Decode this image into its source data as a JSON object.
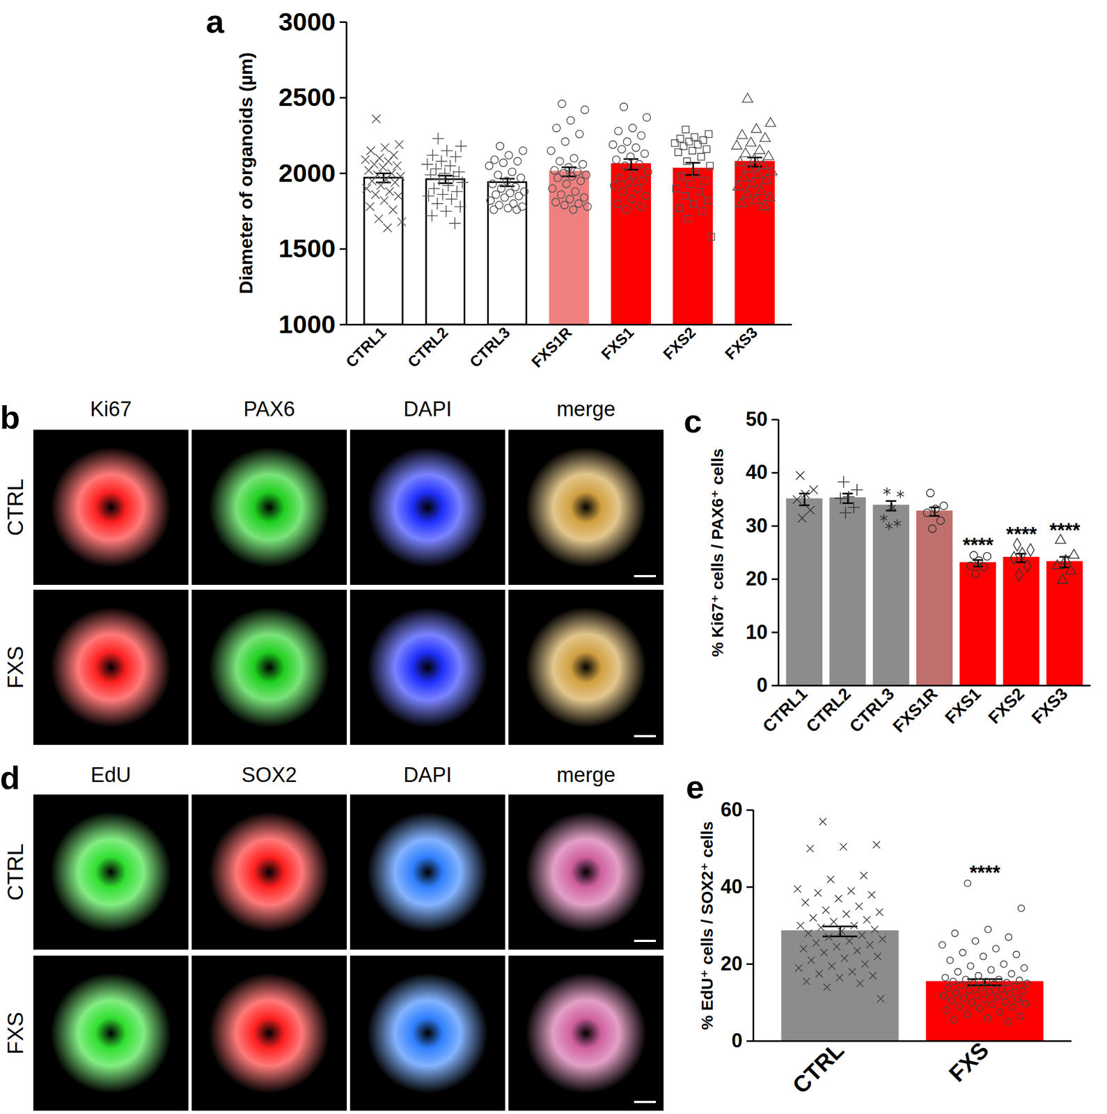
{
  "chart_data": [
    {
      "type": "bar",
      "title": "a",
      "ylabel": "Diameter of organoids (µm)",
      "categories": [
        "CTRL1",
        "CTRL2",
        "CTRL3",
        "FXS1R",
        "FXS1",
        "FXS2",
        "FXS3"
      ],
      "values": [
        1970,
        1960,
        1940,
        2010,
        2060,
        2030,
        2075
      ],
      "errors": [
        30,
        25,
        25,
        30,
        35,
        40,
        30
      ],
      "colors": [
        "#ffffff",
        "#ffffff",
        "#ffffff",
        "#f08080",
        "#ff0000",
        "#ff0000",
        "#ff0000"
      ],
      "points": [
        [
          2360,
          2190,
          2170,
          2150,
          2120,
          2100,
          2090,
          2080,
          2060,
          2050,
          2040,
          2020,
          2000,
          1990,
          1980,
          1960,
          1950,
          1940,
          1920,
          1900,
          1880,
          1860,
          1850,
          1820,
          1780,
          1760,
          1700,
          1680,
          1640
        ],
        [
          2230,
          2180,
          2150,
          2120,
          2110,
          2080,
          2060,
          2050,
          2030,
          2010,
          2000,
          1990,
          1980,
          1960,
          1940,
          1920,
          1900,
          1880,
          1860,
          1850,
          1830,
          1800,
          1780,
          1750,
          1720,
          1670
        ],
        [
          2180,
          2150,
          2120,
          2090,
          2080,
          2070,
          2050,
          2010,
          1990,
          1970,
          1950,
          1930,
          1910,
          1900,
          1880,
          1870,
          1860,
          1850,
          1840,
          1820,
          1800,
          1790,
          1780,
          1770,
          1760,
          1760
        ],
        [
          2460,
          2420,
          2350,
          2300,
          2260,
          2210,
          2150,
          2100,
          2080,
          2060,
          2040,
          2020,
          2010,
          2000,
          1990,
          1980,
          1970,
          1950,
          1930,
          1900,
          1880,
          1860,
          1840,
          1830,
          1810,
          1800,
          1790,
          1780,
          1760
        ],
        [
          2440,
          2370,
          2300,
          2280,
          2250,
          2210,
          2190,
          2170,
          2160,
          2130,
          2110,
          2090,
          2060,
          2050,
          2010,
          1990,
          1970,
          1950,
          1940,
          1920,
          1900,
          1880,
          1850,
          1830,
          1800,
          1780,
          1760
        ],
        [
          2290,
          2260,
          2240,
          2230,
          2220,
          2210,
          2200,
          2190,
          2180,
          2160,
          2150,
          2140,
          2110,
          2080,
          2050,
          2000,
          1980,
          1950,
          1930,
          1900,
          1880,
          1850,
          1820,
          1800,
          1770,
          1750,
          1700,
          1580
        ],
        [
          2490,
          2330,
          2290,
          2250,
          2230,
          2200,
          2180,
          2150,
          2130,
          2110,
          2090,
          2070,
          2050,
          2030,
          2010,
          1990,
          1970,
          1950,
          1930,
          1910,
          1880,
          1860,
          1840,
          1820,
          1800,
          1780
        ]
      ],
      "ylim": [
        1000,
        3000
      ],
      "yticks": [
        1000,
        1500,
        2000,
        2500,
        3000
      ]
    },
    {
      "type": "bar",
      "title": "c",
      "ylabel": "% Ki67⁺ cells / PAX6⁺ cells",
      "categories": [
        "CTRL1",
        "CTRL2",
        "CTRL3",
        "FXS1R",
        "FXS1",
        "FXS2",
        "FXS3"
      ],
      "values": [
        35.0,
        35.2,
        33.8,
        32.7,
        23.0,
        24.0,
        23.2
      ],
      "errors": [
        1.1,
        0.9,
        0.9,
        0.8,
        0.6,
        0.8,
        1.0
      ],
      "colors": [
        "#8c8c8c",
        "#8c8c8c",
        "#8c8c8c",
        "#c0706c",
        "#ff0000",
        "#ff0000",
        "#ff0000"
      ],
      "points": [
        [
          39.5,
          36.8,
          36.0,
          35.0,
          33.0,
          31.5
        ],
        [
          38.3,
          36.8,
          35.5,
          35.2,
          33.5,
          32.5
        ],
        [
          36.5,
          36.0,
          33.5,
          31.5,
          30.5,
          30.0
        ],
        [
          36.2,
          33.8,
          33.2,
          32.5,
          31.0,
          29.5
        ],
        [
          24.5,
          24.3,
          23.5,
          22.5,
          22.3,
          21.0
        ],
        [
          26.5,
          25.5,
          24.8,
          24.0,
          22.5,
          20.8
        ],
        [
          27.3,
          24.5,
          23.5,
          22.5,
          21.5,
          19.8
        ]
      ],
      "annotations": [
        {
          "category": "FXS1",
          "text": "****"
        },
        {
          "category": "FXS2",
          "text": "****"
        },
        {
          "category": "FXS3",
          "text": "****"
        }
      ],
      "ylim": [
        0,
        50
      ],
      "yticks": [
        0,
        10,
        20,
        30,
        40,
        50
      ]
    },
    {
      "type": "bar",
      "title": "e",
      "ylabel": "% EdU⁺ cells / SOX2⁺ cells",
      "categories": [
        "CTRL",
        "FXS"
      ],
      "values": [
        28.5,
        15.3
      ],
      "errors": [
        1.3,
        0.8
      ],
      "colors": [
        "#8c8c8c",
        "#ff0000"
      ],
      "points": [
        [
          57,
          51,
          50.5,
          50,
          43,
          42,
          39.5,
          39,
          38.5,
          38,
          37,
          36,
          35,
          34,
          33.5,
          33,
          32,
          31.5,
          31,
          30,
          30,
          29.5,
          29,
          28.5,
          28,
          27.5,
          27,
          26.5,
          26,
          25.5,
          25,
          24.5,
          24,
          23.5,
          23,
          22,
          21.5,
          21,
          20,
          19.5,
          19,
          18,
          17.5,
          17,
          16.5,
          15.5,
          15,
          14,
          11
        ],
        [
          41,
          34.5,
          29,
          28,
          27,
          26,
          25,
          24,
          23,
          22.5,
          22,
          21,
          20,
          19.5,
          19,
          18.5,
          18,
          17.5,
          17,
          16.5,
          16,
          16,
          15.8,
          15.5,
          15.5,
          15.2,
          15,
          15,
          14.8,
          14.5,
          14.2,
          14,
          13.8,
          13.5,
          13.2,
          13,
          12.8,
          12.5,
          12.3,
          12,
          11.8,
          11.5,
          11.2,
          11,
          10.8,
          10.5,
          10.2,
          10,
          9.8,
          9.5,
          9,
          8.8,
          8.5,
          8,
          7.5,
          7,
          6.5,
          6,
          5.5,
          5
        ]
      ],
      "annotations": [
        {
          "category": "FXS",
          "text": "****"
        }
      ],
      "ylim": [
        0,
        60
      ],
      "yticks": [
        0,
        20,
        40,
        60
      ]
    }
  ],
  "image_panels": [
    {
      "title": "b",
      "rows": [
        "CTRL",
        "FXS"
      ],
      "columns": [
        {
          "label": "Ki67",
          "color": "#ff2020"
        },
        {
          "label": "PAX6",
          "color": "#20d020"
        },
        {
          "label": "DAPI",
          "color": "#2030ff"
        },
        {
          "label": "merge",
          "color": "#d0a040"
        }
      ]
    },
    {
      "title": "d",
      "rows": [
        "CTRL",
        "FXS"
      ],
      "columns": [
        {
          "label": "EdU",
          "color": "#30e030"
        },
        {
          "label": "SOX2",
          "color": "#ff2020"
        },
        {
          "label": "DAPI",
          "color": "#3080ff"
        },
        {
          "label": "merge",
          "color": "#d060a0"
        }
      ]
    }
  ]
}
